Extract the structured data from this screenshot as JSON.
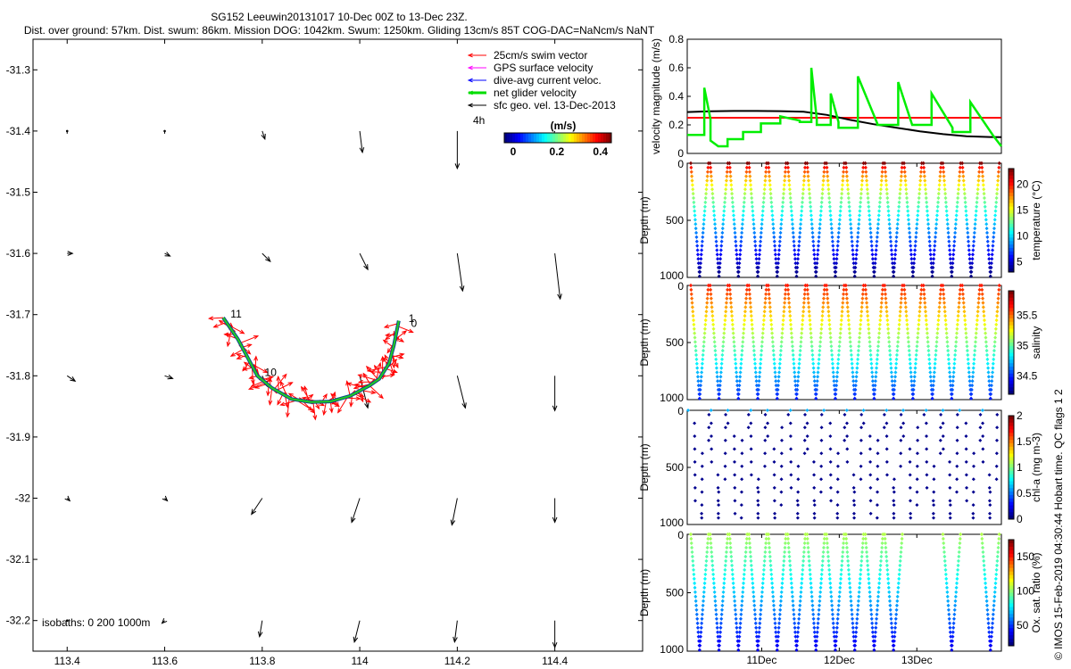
{
  "title": {
    "line1": "SG152 Leeuwin20131017 10-Dec 00Z to 13-Dec 23Z.",
    "line2": "Dist. over ground: 57km. Dist. swum: 86km. Mission DOG: 1042km. Swum: 1250km. Gliding 13cm/s 85T COG-DAC=NaNcm/s NaNT"
  },
  "chart_data": [
    {
      "type": "scatter",
      "name": "map",
      "xlim": [
        113.33,
        114.58
      ],
      "ylim": [
        -32.25,
        -31.25
      ],
      "xticks": [
        113.4,
        113.6,
        113.8,
        114,
        114.2,
        114.4
      ],
      "xtick_labels": [
        "113.4",
        "113.6",
        "113.8",
        "114",
        "114.2",
        "114.4"
      ],
      "yticks": [
        -31.3,
        -31.4,
        -31.5,
        -31.6,
        -31.7,
        -31.8,
        -31.9,
        -32,
        -32.1,
        -32.2
      ],
      "ytick_labels": [
        "-31.3",
        "-31.4",
        "-31.5",
        "-31.6",
        "-31.7",
        "-31.8",
        "-31.9",
        "-32",
        "-32.1",
        "-32.2"
      ],
      "legend": [
        {
          "label": "25cm/s swim vector",
          "color": "#ff0000"
        },
        {
          "label": "GPS surface velocity",
          "color": "#ff00ff"
        },
        {
          "label": "dive-avg current veloc.",
          "color": "#0000ff"
        },
        {
          "label": "net glider velocity",
          "color": "#00dd00"
        },
        {
          "label": "sfc geo. vel. 13-Dec-2013",
          "color": "#000000"
        }
      ],
      "legend_position": "top-right",
      "colorbar": {
        "title": "(m/s)",
        "ticks": [
          "0",
          "0.2",
          "0.4"
        ],
        "label_4h": "4h"
      },
      "isobath_text": "isobaths: 0   200  1000m",
      "track": [
        [
          113.72,
          -31.705
        ],
        [
          113.75,
          -31.74
        ],
        [
          113.77,
          -31.77
        ],
        [
          113.79,
          -31.8
        ],
        [
          113.82,
          -31.82
        ],
        [
          113.86,
          -31.838
        ],
        [
          113.9,
          -31.843
        ],
        [
          113.94,
          -31.842
        ],
        [
          113.98,
          -31.833
        ],
        [
          114.02,
          -31.816
        ],
        [
          114.04,
          -31.805
        ],
        [
          114.06,
          -31.78
        ],
        [
          114.07,
          -31.75
        ],
        [
          114.08,
          -31.71
        ]
      ],
      "track_labels": [
        {
          "text": "11",
          "x": 113.735,
          "y": -31.705
        },
        {
          "text": "10",
          "x": 113.805,
          "y": -31.8
        },
        {
          "text": "1",
          "x": 114.1,
          "y": -31.712
        },
        {
          "text": "0",
          "x": 114.105,
          "y": -31.72
        }
      ],
      "geo_vel_grid": {
        "lons": [
          113.4,
          113.6,
          113.8,
          114,
          114.2,
          114.4
        ],
        "lats": [
          -31.4,
          -31.6,
          -31.8,
          -32,
          -32.2
        ],
        "u": [
          [
            0.0,
            0.0,
            0.01,
            0.01,
            0.0,
            -0.01
          ],
          [
            0.02,
            0.02,
            0.03,
            0.03,
            0.02,
            0.02
          ],
          [
            0.03,
            0.03,
            0.02,
            0.03,
            0.03,
            0.0
          ],
          [
            0.01,
            0.01,
            -0.04,
            -0.03,
            -0.02,
            0.0
          ],
          [
            0.0,
            -0.01,
            -0.01,
            -0.02,
            -0.01,
            0.0
          ]
        ],
        "v": [
          [
            -0.01,
            -0.01,
            -0.03,
            -0.08,
            -0.14,
            -0.03
          ],
          [
            0.0,
            -0.01,
            -0.03,
            -0.06,
            -0.14,
            -0.17
          ],
          [
            -0.02,
            -0.01,
            -0.04,
            -0.12,
            -0.12,
            -0.13
          ],
          [
            -0.01,
            -0.01,
            -0.06,
            -0.09,
            -0.1,
            -0.09
          ],
          [
            0.0,
            -0.01,
            -0.06,
            -0.08,
            -0.08,
            -0.1
          ]
        ]
      }
    },
    {
      "type": "line",
      "name": "velocity",
      "ylabel": "velocity magnitude (m/s)",
      "ylim": [
        0,
        0.8
      ],
      "yticks": [
        0,
        0.2,
        0.4,
        0.6,
        0.8
      ],
      "ytick_labels": [
        "0",
        "0.2",
        "0.4",
        "0.6",
        "0.8"
      ],
      "xlim": [
        0,
        4.05
      ],
      "series": [
        {
          "color": "#ff0000",
          "x": [
            0,
            4.05
          ],
          "y": [
            0.25,
            0.25
          ]
        },
        {
          "color": "#000000",
          "x": [
            0,
            0.3,
            0.6,
            0.9,
            1.2,
            1.5,
            1.8,
            2.1,
            2.4,
            2.7,
            3.0,
            3.3,
            3.6,
            3.9,
            4.05
          ],
          "y": [
            0.29,
            0.295,
            0.298,
            0.298,
            0.296,
            0.292,
            0.27,
            0.235,
            0.205,
            0.18,
            0.155,
            0.135,
            0.12,
            0.115,
            0.114
          ]
        },
        {
          "color": "#00ee00",
          "x": [
            0.0,
            0.22,
            0.22,
            0.3,
            0.3,
            0.4,
            0.52,
            0.52,
            0.7,
            0.72,
            0.72,
            0.95,
            0.95,
            1.2,
            1.2,
            1.45,
            1.45,
            1.6,
            1.6,
            1.67,
            1.67,
            1.85,
            1.85,
            1.95,
            1.95,
            2.2,
            2.2,
            2.45,
            2.45,
            2.72,
            2.72,
            2.9,
            2.9,
            3.15,
            3.15,
            3.42,
            3.42,
            3.65,
            3.65,
            3.95,
            3.95,
            4.05
          ],
          "y": [
            0.13,
            0.13,
            0.46,
            0.24,
            0.09,
            0.05,
            0.05,
            0.1,
            0.1,
            0.1,
            0.15,
            0.15,
            0.21,
            0.21,
            0.26,
            0.23,
            0.22,
            0.22,
            0.6,
            0.24,
            0.2,
            0.2,
            0.42,
            0.22,
            0.18,
            0.18,
            0.54,
            0.21,
            0.2,
            0.2,
            0.5,
            0.2,
            0.2,
            0.2,
            0.42,
            0.18,
            0.15,
            0.15,
            0.36,
            0.12,
            0.12,
            0.05
          ]
        }
      ]
    },
    {
      "type": "scatter",
      "name": "temperature",
      "ylabel": "Depth (m)",
      "yticks": [
        0,
        500,
        1000
      ],
      "ytick_labels": [
        "0",
        "500",
        "1000"
      ],
      "cbar_label": "temperature (°C)",
      "cbar_ticks": [
        "5",
        "10",
        "15",
        "20"
      ],
      "dives": 16,
      "start_x": 0.03
    },
    {
      "type": "scatter",
      "name": "salinity",
      "ylabel": "Depth (m)",
      "yticks": [
        0,
        500,
        1000
      ],
      "ytick_labels": [
        "0",
        "500",
        "1000"
      ],
      "cbar_label": "salinity",
      "cbar_ticks": [
        "34.5",
        "35",
        "35.5"
      ],
      "dives": 16,
      "start_x": 0.03
    },
    {
      "type": "scatter",
      "name": "chl",
      "ylabel": "Depth (m)",
      "yticks": [
        0,
        500,
        1000
      ],
      "ytick_labels": [
        "0",
        "500",
        "1000"
      ],
      "cbar_label": "chl-a (mg m-3)",
      "cbar_ticks": [
        "0",
        "0.5",
        "1",
        "1.5",
        "2"
      ],
      "dives": 16,
      "start_x": 0.03
    },
    {
      "type": "scatter",
      "name": "oxygen",
      "ylabel": "Depth (m)",
      "yticks": [
        0,
        500,
        1000
      ],
      "ytick_labels": [
        "0",
        "500",
        "1000"
      ],
      "cbar_label": "Ox. sat. ratio (%)",
      "cbar_ticks": [
        "50",
        "100",
        "150"
      ],
      "dives": [
        0,
        1,
        2,
        3,
        4,
        5,
        6,
        7,
        8,
        9,
        10,
        13,
        15
      ],
      "xtick_labels": [
        "11Dec",
        "12Dec",
        "13Dec"
      ]
    }
  ],
  "side_note": "© IMOS 15-Feb-2019 04:30:44 Hobart time. QC flags 1  2"
}
